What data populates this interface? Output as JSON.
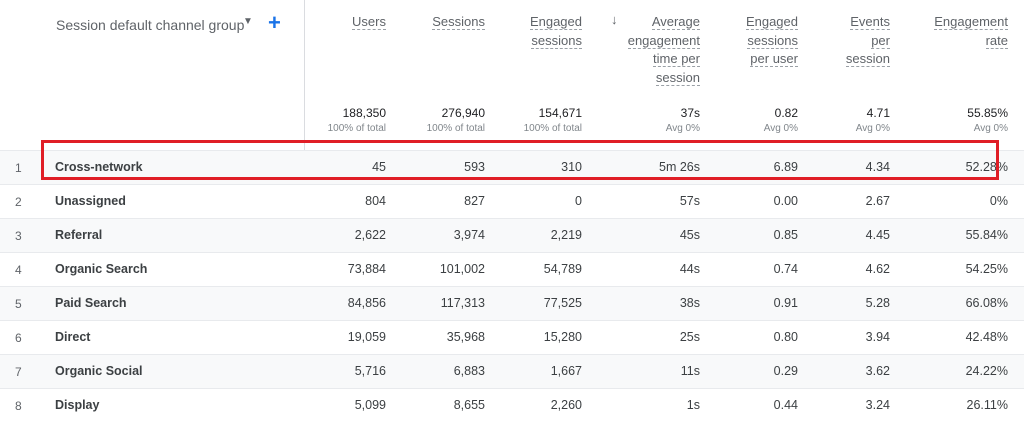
{
  "dimension_header": {
    "label": "Session default channel group",
    "dropdown_icon": "chevron-down-icon",
    "add_icon": "plus-icon"
  },
  "sort_icon": "arrow-down-icon",
  "columns": [
    {
      "key": "users",
      "label_lines": [
        "Users"
      ]
    },
    {
      "key": "sessions",
      "label_lines": [
        "Sessions"
      ]
    },
    {
      "key": "engaged_sessions",
      "label_lines": [
        "Engaged",
        "sessions"
      ]
    },
    {
      "key": "avg_engagement_time",
      "label_lines": [
        "Average",
        "engagement",
        "time per",
        "session"
      ]
    },
    {
      "key": "engaged_sessions_per_user",
      "label_lines": [
        "Engaged",
        "sessions",
        "per user"
      ]
    },
    {
      "key": "events_per_session",
      "label_lines": [
        "Events",
        "per",
        "session"
      ]
    },
    {
      "key": "engagement_rate",
      "label_lines": [
        "Engagement",
        "rate"
      ]
    }
  ],
  "totals": [
    {
      "value": "188,350",
      "sub": "100% of total"
    },
    {
      "value": "276,940",
      "sub": "100% of total"
    },
    {
      "value": "154,671",
      "sub": "100% of total"
    },
    {
      "value": "37s",
      "sub": "Avg 0%"
    },
    {
      "value": "0.82",
      "sub": "Avg 0%"
    },
    {
      "value": "4.71",
      "sub": "Avg 0%"
    },
    {
      "value": "55.85%",
      "sub": "Avg 0%"
    }
  ],
  "rows": [
    {
      "index": "1",
      "name": "Cross-network",
      "values": [
        "45",
        "593",
        "310",
        "5m 26s",
        "6.89",
        "4.34",
        "52.28%"
      ]
    },
    {
      "index": "2",
      "name": "Unassigned",
      "values": [
        "804",
        "827",
        "0",
        "57s",
        "0.00",
        "2.67",
        "0%"
      ]
    },
    {
      "index": "3",
      "name": "Referral",
      "values": [
        "2,622",
        "3,974",
        "2,219",
        "45s",
        "0.85",
        "4.45",
        "55.84%"
      ]
    },
    {
      "index": "4",
      "name": "Organic Search",
      "values": [
        "73,884",
        "101,002",
        "54,789",
        "44s",
        "0.74",
        "4.62",
        "54.25%"
      ]
    },
    {
      "index": "5",
      "name": "Paid Search",
      "values": [
        "84,856",
        "117,313",
        "77,525",
        "38s",
        "0.91",
        "5.28",
        "66.08%"
      ]
    },
    {
      "index": "6",
      "name": "Direct",
      "values": [
        "19,059",
        "35,968",
        "15,280",
        "25s",
        "0.80",
        "3.94",
        "42.48%"
      ]
    },
    {
      "index": "7",
      "name": "Organic Social",
      "values": [
        "5,716",
        "6,883",
        "1,667",
        "11s",
        "0.29",
        "3.62",
        "24.22%"
      ]
    },
    {
      "index": "8",
      "name": "Display",
      "values": [
        "5,099",
        "8,655",
        "2,260",
        "1s",
        "0.44",
        "3.24",
        "26.11%"
      ]
    }
  ],
  "accent_color": "#1a73e8",
  "highlight_color": "#e01e26"
}
